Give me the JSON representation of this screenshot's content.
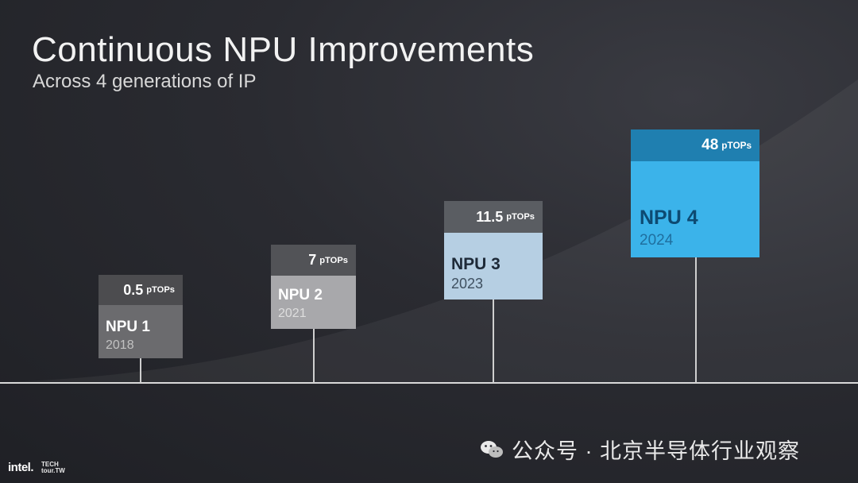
{
  "slide": {
    "title": "Continuous NPU Improvements",
    "subtitle": "Across 4 generations of IP"
  },
  "generations": [
    {
      "value": "0.5",
      "unit": "pTOPs",
      "name": "NPU 1",
      "year": "2018"
    },
    {
      "value": "7",
      "unit": "pTOPs",
      "name": "NPU 2",
      "year": "2021"
    },
    {
      "value": "11.5",
      "unit": "pTOPs",
      "name": "NPU 3",
      "year": "2023"
    },
    {
      "value": "48",
      "unit": "pTOPs",
      "name": "NPU 4",
      "year": "2024"
    }
  ],
  "branding": {
    "logo": "intel.",
    "event_line1": "TECH",
    "event_line2": "tour.TW"
  },
  "watermark": {
    "icon": "wechat-icon",
    "text": "公众号 · 北京半导体行业观察"
  },
  "colors": {
    "npu1": "#6b6b6e",
    "npu2": "#a8a8ab",
    "npu3": "#b6cfe3",
    "npu4": "#3bb3ea"
  }
}
